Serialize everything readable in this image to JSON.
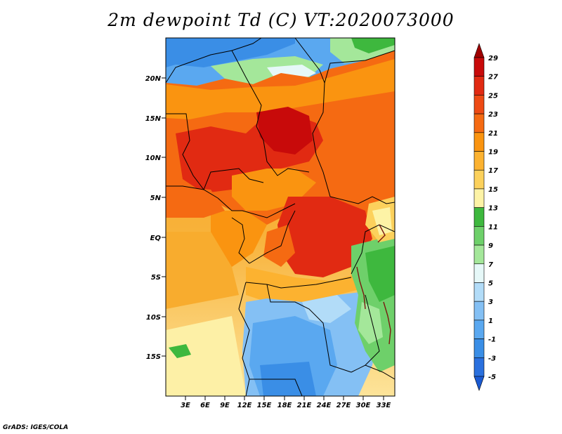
{
  "title": "2m dewpoint Td (C) VT:2020073000",
  "credit": "GrADS: IGES/COLA",
  "map": {
    "lat_labels": [
      "20N",
      "15N",
      "10N",
      "5N",
      "EQ",
      "5S",
      "10S",
      "15S"
    ],
    "lon_labels": [
      "3E",
      "6E",
      "9E",
      "12E",
      "15E",
      "18E",
      "21E",
      "24E",
      "27E",
      "30E",
      "33E"
    ]
  },
  "colorbar": {
    "labels": [
      "29",
      "27",
      "25",
      "23",
      "21",
      "19",
      "17",
      "15",
      "13",
      "11",
      "9",
      "7",
      "5",
      "3",
      "1",
      "-1",
      "-3",
      "-5"
    ],
    "colors": [
      "#a00000",
      "#c80a0a",
      "#e12a12",
      "#ee4a14",
      "#f56a12",
      "#fa9410",
      "#fcb230",
      "#fcd15c",
      "#fdf3a6",
      "#3eb83e",
      "#6ed06a",
      "#a4e79a",
      "#e6f8f8",
      "#b2dcf8",
      "#84c0f4",
      "#5aa8f0",
      "#3a8ee6",
      "#2a70de",
      "#1a5ad2"
    ]
  }
}
